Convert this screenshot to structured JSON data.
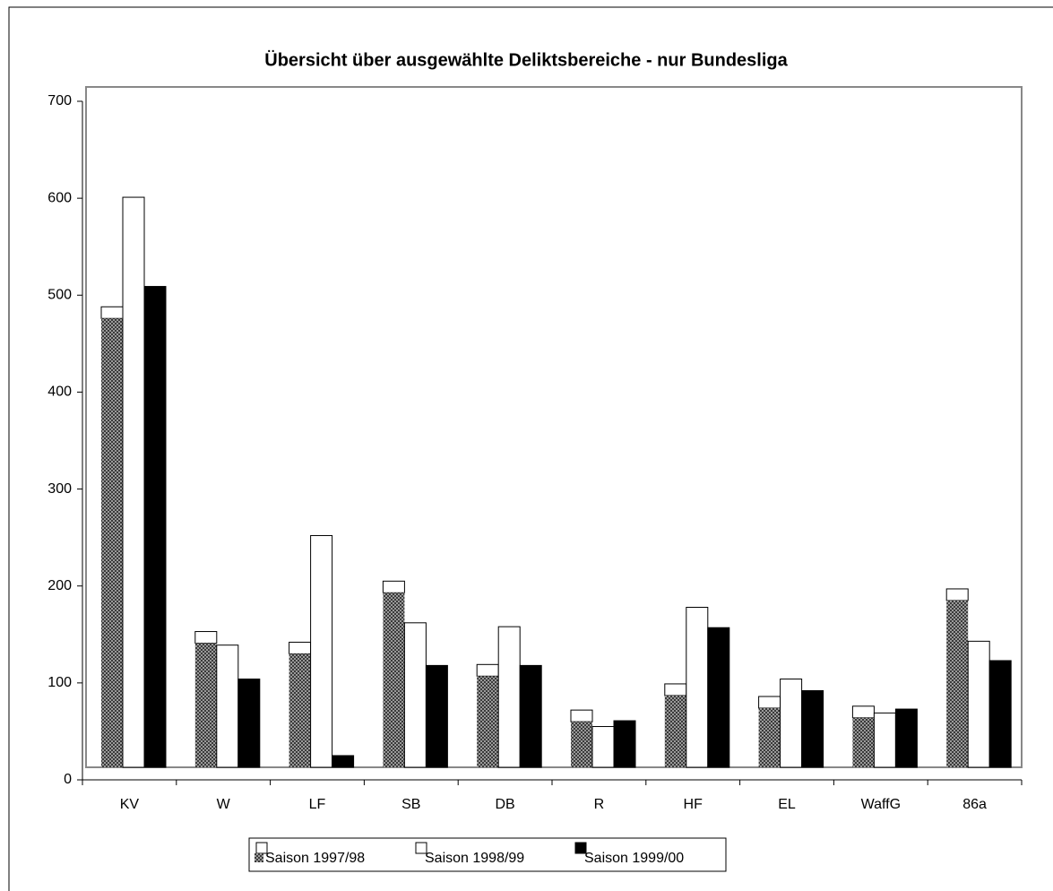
{
  "chart_data": {
    "type": "bar",
    "title": "Übersicht über ausgewählte Deliktsbereiche - nur Bundesliga",
    "categories": [
      "KV",
      "W",
      "LF",
      "SB",
      "DB",
      "R",
      "HF",
      "EL",
      "WaffG",
      "86a"
    ],
    "series": [
      {
        "name": "Saison 1997/98",
        "color": "#808080",
        "values": [
          488,
          153,
          142,
          205,
          119,
          72,
          99,
          86,
          76,
          197
        ]
      },
      {
        "name": "Saison 1998/99",
        "color": "#ffffff",
        "values": [
          601,
          139,
          252,
          162,
          158,
          55,
          178,
          104,
          69,
          143
        ]
      },
      {
        "name": "Saison 1999/00",
        "color": "#000000",
        "values": [
          509,
          104,
          25,
          118,
          118,
          61,
          157,
          92,
          73,
          123
        ]
      }
    ],
    "ylim": [
      0,
      700
    ],
    "yticks": [
      0,
      100,
      200,
      300,
      400,
      500,
      600,
      700
    ]
  }
}
